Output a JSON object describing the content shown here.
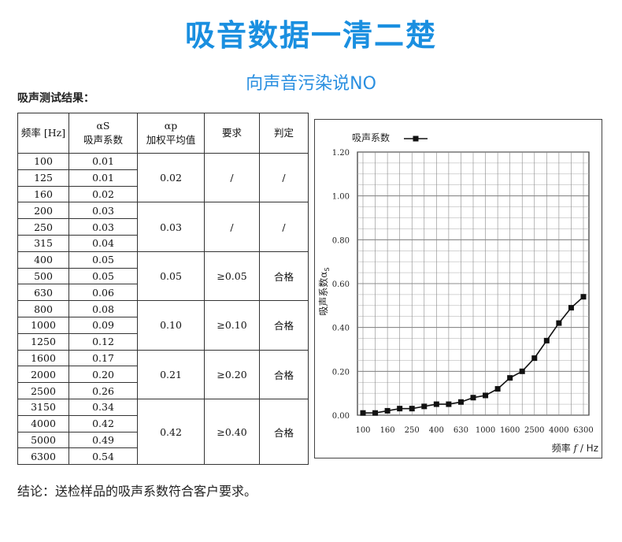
{
  "title": "吸音数据一清二楚",
  "subtitle": "向声音污染说NO",
  "section_label": "吸声测试结果：",
  "table": {
    "headers": {
      "freq": "频率 [Hz]",
      "alpha_s_symbol": "αS",
      "alpha_s_label": "吸声系数",
      "alpha_p_symbol": "αp",
      "alpha_p_label": "加权平均值",
      "requirement": "要求",
      "judgement": "判定"
    },
    "groups": [
      {
        "rows": [
          [
            "100",
            "0.01"
          ],
          [
            "125",
            "0.01"
          ],
          [
            "160",
            "0.02"
          ]
        ],
        "weighted": "0.02",
        "requirement": "/",
        "judgement": "/"
      },
      {
        "rows": [
          [
            "200",
            "0.03"
          ],
          [
            "250",
            "0.03"
          ],
          [
            "315",
            "0.04"
          ]
        ],
        "weighted": "0.03",
        "requirement": "/",
        "judgement": "/"
      },
      {
        "rows": [
          [
            "400",
            "0.05"
          ],
          [
            "500",
            "0.05"
          ],
          [
            "630",
            "0.06"
          ]
        ],
        "weighted": "0.05",
        "requirement": "≥0.05",
        "judgement": "合格"
      },
      {
        "rows": [
          [
            "800",
            "0.08"
          ],
          [
            "1000",
            "0.09"
          ],
          [
            "1250",
            "0.12"
          ]
        ],
        "weighted": "0.10",
        "requirement": "≥0.10",
        "judgement": "合格"
      },
      {
        "rows": [
          [
            "1600",
            "0.17"
          ],
          [
            "2000",
            "0.20"
          ],
          [
            "2500",
            "0.26"
          ]
        ],
        "weighted": "0.21",
        "requirement": "≥0.20",
        "judgement": "合格"
      },
      {
        "rows": [
          [
            "3150",
            "0.34"
          ],
          [
            "4000",
            "0.42"
          ],
          [
            "5000",
            "0.49"
          ],
          [
            "6300",
            "0.54"
          ]
        ],
        "weighted": "0.42",
        "requirement": "≥0.40",
        "judgement": "合格"
      }
    ]
  },
  "chart_data": {
    "type": "line",
    "legend": "吸声系数",
    "legend_position": "top-left",
    "ylabel_prefix": "吸声系数",
    "ylabel_symbol": "α",
    "ylabel_sub": "S",
    "xlabel_prefix": "频率 ",
    "xlabel_var": "f",
    "xlabel_unit": " / Hz",
    "x": [
      "100",
      "125",
      "160",
      "200",
      "250",
      "315",
      "400",
      "500",
      "630",
      "800",
      "1000",
      "1250",
      "1600",
      "2000",
      "2500",
      "3150",
      "4000",
      "5000",
      "6300"
    ],
    "y": [
      0.01,
      0.01,
      0.02,
      0.03,
      0.03,
      0.04,
      0.05,
      0.05,
      0.06,
      0.08,
      0.09,
      0.12,
      0.17,
      0.2,
      0.26,
      0.34,
      0.42,
      0.49,
      0.54
    ],
    "xticks": [
      "100",
      "160",
      "250",
      "400",
      "630",
      "1000",
      "1600",
      "2500",
      "4000",
      "6300"
    ],
    "yticks": [
      "0.00",
      "0.20",
      "0.40",
      "0.60",
      "0.80",
      "1.00",
      "1.20"
    ],
    "ylim": [
      0,
      1.2
    ],
    "grid": true,
    "line_color": "#111111",
    "marker": "square"
  },
  "conclusion": "结论：送检样品的吸声系数符合客户要求。"
}
